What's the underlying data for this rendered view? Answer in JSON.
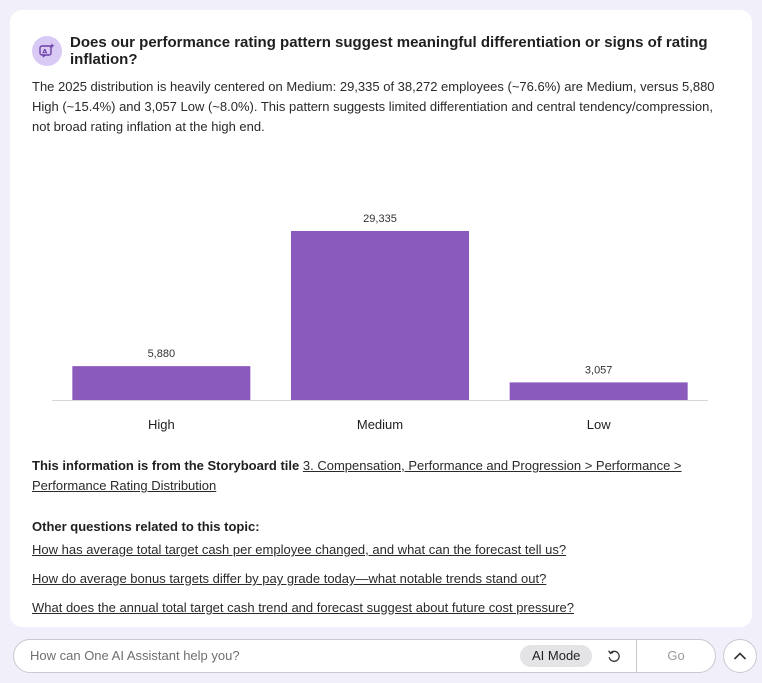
{
  "question": {
    "title": "Does our performance rating pattern suggest meaningful differentiation or signs of rating inflation?",
    "icon": "ai-sparkle-icon"
  },
  "answer": "The 2025 distribution is heavily centered on Medium: 29,335 of 38,272 employees (~76.6%) are Medium, versus 5,880 High (~15.4%) and 3,057 Low (~8.0%). This pattern suggests limited differentiation and central tendency/compression, not broad rating inflation at the high end.",
  "chart_data": {
    "type": "bar",
    "title": "",
    "categories": [
      "High",
      "Medium",
      "Low"
    ],
    "values": [
      5880,
      29335,
      3057
    ],
    "value_labels": [
      "5,880",
      "29,335",
      "3,057"
    ],
    "xlabel": "",
    "ylabel": "",
    "ylim": [
      0,
      29335
    ],
    "grid": false,
    "bar_color": "#8a5bbd"
  },
  "source": {
    "lead": "This information is from the Storyboard tile",
    "link": "3. Compensation, Performance and Progression > Performance > Performance Rating Distribution"
  },
  "related": {
    "title": "Other questions related to this topic:",
    "items": [
      "How has average total target cash per employee changed, and what can the forecast tell us?",
      "How do average bonus targets differ by pay grade today—what notable trends stand out?",
      "What does the annual total target cash trend and forecast suggest about future cost pressure?"
    ]
  },
  "input": {
    "placeholder": "How can One AI Assistant help you?",
    "ai_mode_label": "AI Mode",
    "go_label": "Go"
  },
  "colors": {
    "accent": "#8a5bbd",
    "icon_bg": "#d9caf5",
    "page_bg": "#f1eff9"
  }
}
